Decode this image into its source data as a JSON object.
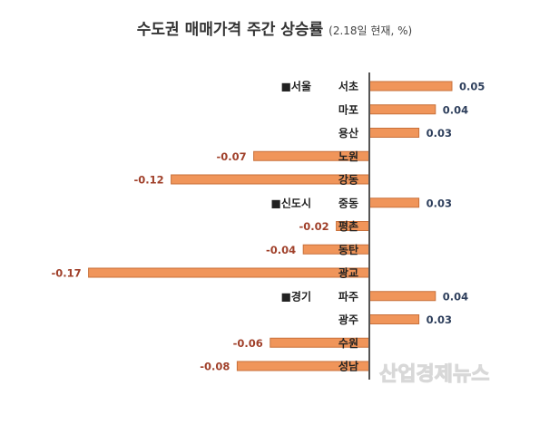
{
  "chart_data": {
    "type": "bar",
    "orientation": "horizontal",
    "title": "수도권 매매가격 주간 상승률",
    "subtitle": "(2.18일 현재, %)",
    "groups": [
      {
        "label": "■서울",
        "start": 0
      },
      {
        "label": "■신도시",
        "start": 5
      },
      {
        "label": "■경기",
        "start": 9
      }
    ],
    "categories": [
      "서초",
      "마포",
      "용산",
      "노원",
      "강동",
      "중동",
      "평촌",
      "동탄",
      "광교",
      "파주",
      "광주",
      "수원",
      "성남"
    ],
    "values": [
      0.05,
      0.04,
      0.03,
      -0.07,
      -0.12,
      0.03,
      -0.02,
      -0.04,
      -0.17,
      0.04,
      0.03,
      -0.06,
      -0.08
    ],
    "data_labels": [
      "0.05",
      "0.04",
      "0.03",
      "-0.07",
      "-0.12",
      "0.03",
      "-0.02",
      "-0.04",
      "-0.17",
      "0.04",
      "0.03",
      "-0.06",
      "-0.08"
    ],
    "xlim": [
      -0.17,
      0.05
    ],
    "grid": false,
    "colors": {
      "bar": "#f0955a",
      "bar_border": "#c8703a",
      "positive_label": "#2e3f5c",
      "negative_label": "#a0402a",
      "axis": "#555555"
    }
  },
  "watermark": "산업경제뉴스"
}
